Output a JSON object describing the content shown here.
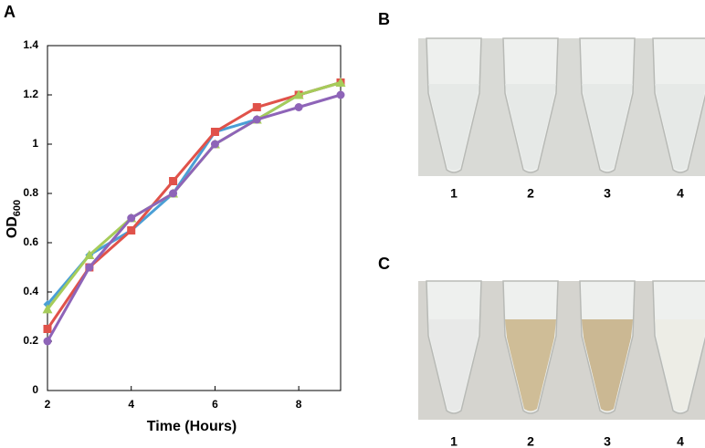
{
  "chart_data": {
    "type": "line",
    "y_label": "OD",
    "y_label_sub": "600",
    "x_label": "Time (Hours)",
    "x": [
      2,
      3,
      4,
      5,
      6,
      7,
      8,
      9
    ],
    "series": [
      {
        "color": "#4a9fd6",
        "marker": "diamond",
        "values": [
          0.35,
          0.55,
          0.65,
          0.8,
          1.05,
          1.1,
          1.2,
          1.25
        ]
      },
      {
        "color": "#e0524a",
        "marker": "square",
        "values": [
          0.25,
          0.5,
          0.65,
          0.85,
          1.05,
          1.15,
          1.2,
          1.25
        ]
      },
      {
        "color": "#a6cc5a",
        "marker": "triangle",
        "values": [
          0.33,
          0.55,
          0.7,
          0.8,
          1.0,
          1.1,
          1.2,
          1.25
        ]
      },
      {
        "color": "#8e64b8",
        "marker": "circle",
        "values": [
          0.2,
          0.5,
          0.7,
          0.8,
          1.0,
          1.1,
          1.15,
          1.2
        ]
      }
    ],
    "xlim": [
      2,
      9
    ],
    "xticks": [
      2,
      4,
      6,
      8
    ],
    "ylim": [
      0,
      1.4
    ],
    "yticks": [
      0,
      0.2,
      0.4,
      0.6,
      0.8,
      1,
      1.2,
      1.4
    ]
  },
  "panel_labels": [
    "A",
    "B",
    "C"
  ],
  "tube_labels_b": [
    "1",
    "2",
    "3",
    "4"
  ],
  "tube_labels_c": [
    "1",
    "2",
    "3",
    "4"
  ]
}
